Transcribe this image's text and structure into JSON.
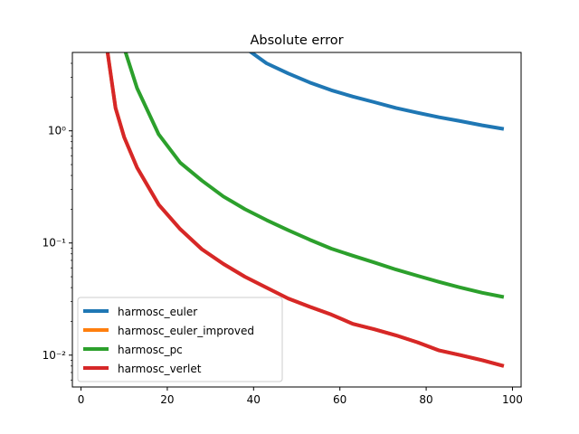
{
  "chart_data": {
    "type": "line",
    "title": "Absolute error",
    "xlabel": "",
    "ylabel": "",
    "yscale": "log",
    "xlim": [
      -2,
      102
    ],
    "ylim": [
      0.0052,
      5.0
    ],
    "grid": false,
    "legend_position": "lower-left",
    "xticks": [
      0,
      20,
      40,
      60,
      80,
      100
    ],
    "xtick_labels": [
      "0",
      "20",
      "40",
      "60",
      "80",
      "100"
    ],
    "yticks": [
      0.01,
      0.1,
      1
    ],
    "ytick_labels": [
      "10⁻²",
      "10⁻¹",
      "10⁰"
    ],
    "series": [
      {
        "name": "harmosc_euler",
        "color": "#1f77b4",
        "x": [
          38,
          43,
          48,
          53,
          58,
          63,
          68,
          73,
          78,
          83,
          88,
          93,
          98
        ],
        "y": [
          5.5,
          4.0,
          3.25,
          2.7,
          2.3,
          2.02,
          1.8,
          1.6,
          1.45,
          1.32,
          1.22,
          1.12,
          1.04
        ]
      },
      {
        "name": "harmosc_euler_improved",
        "color": "#ff7f0e",
        "x": [
          6,
          8,
          10,
          13,
          18,
          23,
          28,
          33,
          38,
          43,
          48,
          53,
          58,
          63,
          68,
          73,
          78,
          83,
          88,
          93,
          98
        ],
        "y": [
          5.5,
          1.6,
          0.88,
          0.47,
          0.22,
          0.133,
          0.088,
          0.065,
          0.05,
          0.04,
          0.032,
          0.027,
          0.023,
          0.019,
          0.017,
          0.015,
          0.013,
          0.011,
          0.01,
          0.009,
          0.008
        ]
      },
      {
        "name": "harmosc_pc",
        "color": "#2ca02c",
        "x": [
          10,
          13,
          18,
          23,
          28,
          33,
          38,
          43,
          48,
          53,
          58,
          63,
          68,
          73,
          78,
          83,
          88,
          93,
          98
        ],
        "y": [
          5.5,
          2.4,
          0.93,
          0.52,
          0.36,
          0.26,
          0.2,
          0.16,
          0.13,
          0.107,
          0.089,
          0.077,
          0.067,
          0.058,
          0.051,
          0.045,
          0.04,
          0.036,
          0.033
        ]
      },
      {
        "name": "harmosc_verlet",
        "color": "#d62728",
        "x": [
          6,
          8,
          10,
          13,
          18,
          23,
          28,
          33,
          38,
          43,
          48,
          53,
          58,
          63,
          68,
          73,
          78,
          83,
          88,
          93,
          98
        ],
        "y": [
          5.5,
          1.6,
          0.88,
          0.47,
          0.22,
          0.133,
          0.088,
          0.065,
          0.05,
          0.04,
          0.032,
          0.027,
          0.023,
          0.019,
          0.017,
          0.015,
          0.013,
          0.011,
          0.01,
          0.009,
          0.008
        ]
      }
    ]
  }
}
